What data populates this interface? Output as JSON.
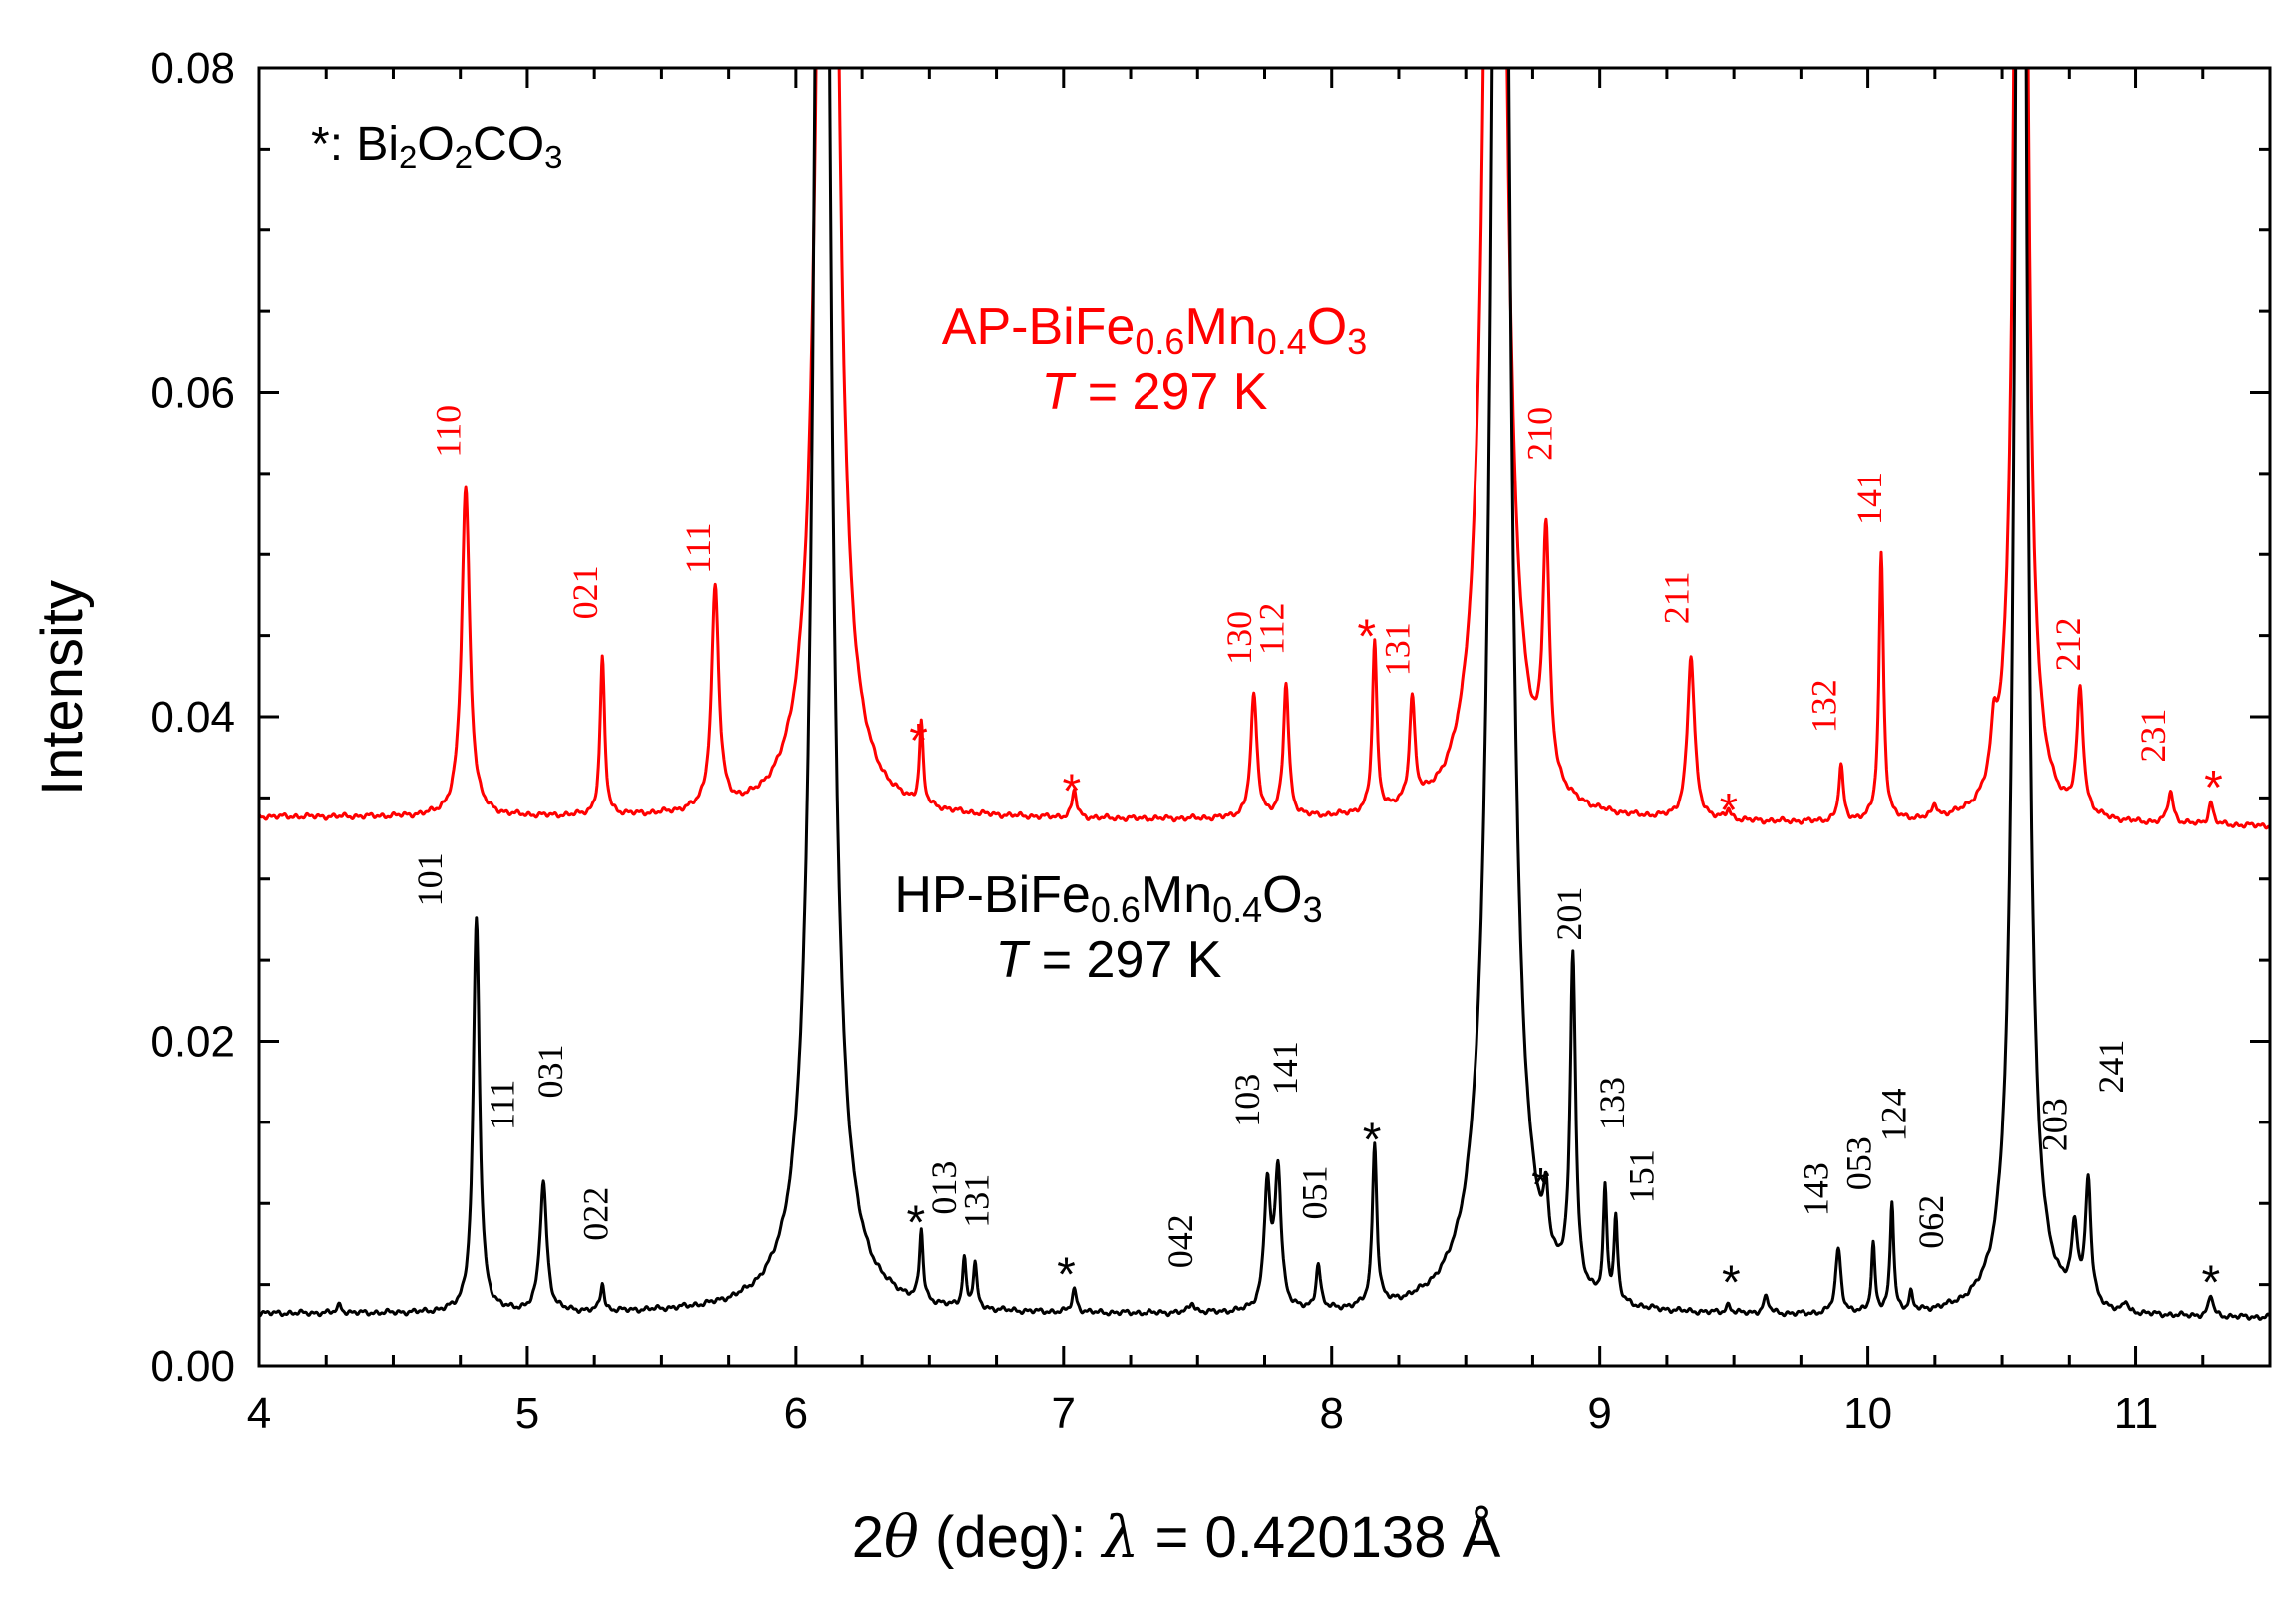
{
  "chart_data": {
    "type": "line",
    "xlabel": "2θ (deg): λ = 0.420138 Å",
    "xlabel_parts": {
      "two": "2",
      "theta": "θ",
      "deg": " (deg): ",
      "lambda": "λ",
      "rest": " = 0.420138 Å"
    },
    "ylabel": "Intensity",
    "xlim": [
      4,
      11.5
    ],
    "ylim": [
      0,
      0.08
    ],
    "x_ticks": [
      4,
      5,
      6,
      7,
      8,
      9,
      10,
      11
    ],
    "x_tick_labels": [
      "4",
      "5",
      "6",
      "7",
      "8",
      "9",
      "10",
      "11"
    ],
    "y_ticks": [
      0.0,
      0.02,
      0.04,
      0.06,
      0.08
    ],
    "y_tick_labels": [
      "0.00",
      "0.02",
      "0.04",
      "0.06",
      "0.08"
    ],
    "legend_note": {
      "star": "*",
      "sep": ": ",
      "formula": [
        [
          "Bi",
          false
        ],
        [
          "2",
          true
        ],
        [
          "O",
          false
        ],
        [
          "2",
          true
        ],
        [
          "CO",
          false
        ],
        [
          "3",
          true
        ]
      ]
    },
    "series": [
      {
        "name": "AP-BiFe0.6Mn0.4O3",
        "color": "#ff0000",
        "label_parts": [
          [
            "AP-BiFe",
            false
          ],
          [
            "0.6",
            true
          ],
          [
            "Mn",
            false
          ],
          [
            "0.4",
            true
          ],
          [
            "O",
            false
          ],
          [
            "3",
            true
          ]
        ],
        "temperature": {
          "t": "T",
          "rest": " = 297 K"
        },
        "baseline": 0.0338,
        "baseline_end": 0.0332,
        "peaks": [
          {
            "x": 4.77,
            "h": 0.0203,
            "w": 0.018,
            "label": "110"
          },
          {
            "x": 5.28,
            "h": 0.0097,
            "w": 0.01,
            "label": "021"
          },
          {
            "x": 5.7,
            "h": 0.0137,
            "w": 0.016,
            "label": "111"
          },
          {
            "x": 6.12,
            "h": 0.15,
            "w": 0.03,
            "label": ""
          },
          {
            "x": 6.47,
            "h": 0.005,
            "w": 0.008,
            "label": "*"
          },
          {
            "x": 7.04,
            "h": 0.0017,
            "w": 0.01,
            "label": "*"
          },
          {
            "x": 7.71,
            "h": 0.0075,
            "w": 0.014,
            "label": "130"
          },
          {
            "x": 7.83,
            "h": 0.0082,
            "w": 0.012,
            "label": "112"
          },
          {
            "x": 8.16,
            "h": 0.0105,
            "w": 0.01,
            "label": "*"
          },
          {
            "x": 8.3,
            "h": 0.0065,
            "w": 0.012,
            "label": "131"
          },
          {
            "x": 8.61,
            "h": 0.15,
            "w": 0.03,
            "label": ""
          },
          {
            "x": 8.8,
            "h": 0.015,
            "w": 0.015,
            "label": "210"
          },
          {
            "x": 9.34,
            "h": 0.01,
            "w": 0.016,
            "label": "211"
          },
          {
            "x": 9.48,
            "h": 0.0006,
            "w": 0.01,
            "label": "*"
          },
          {
            "x": 9.9,
            "h": 0.0034,
            "w": 0.01,
            "label": "132"
          },
          {
            "x": 10.05,
            "h": 0.0165,
            "w": 0.01,
            "label": "141"
          },
          {
            "x": 10.25,
            "h": 0.0008,
            "w": 0.01,
            "label": ""
          },
          {
            "x": 10.47,
            "h": 0.003,
            "w": 0.014,
            "label": ""
          },
          {
            "x": 10.57,
            "h": 0.15,
            "w": 0.018,
            "label": ""
          },
          {
            "x": 10.79,
            "h": 0.0075,
            "w": 0.014,
            "label": "212"
          },
          {
            "x": 11.13,
            "h": 0.002,
            "w": 0.012,
            "label": "231"
          },
          {
            "x": 11.28,
            "h": 0.0014,
            "w": 0.01,
            "label": "*"
          }
        ]
      },
      {
        "name": "HP-BiFe0.6Mn0.4O3",
        "color": "#000000",
        "label_parts": [
          [
            "HP-BiFe",
            false
          ],
          [
            "0.6",
            true
          ],
          [
            "Mn",
            false
          ],
          [
            "0.4",
            true
          ],
          [
            "O",
            false
          ],
          [
            "3",
            true
          ]
        ],
        "temperature": {
          "t": "T",
          "rest": " = 297 K"
        },
        "baseline": 0.0032,
        "baseline_end": 0.0029,
        "peaks": [
          {
            "x": 4.3,
            "h": 0.0005,
            "w": 0.01,
            "label": ""
          },
          {
            "x": 4.81,
            "h": 0.0243,
            "w": 0.014,
            "label": "101"
          },
          {
            "x": 5.06,
            "h": 0.008,
            "w": 0.015,
            "label": "111 031"
          },
          {
            "x": 5.28,
            "h": 0.0017,
            "w": 0.008,
            "label": "022"
          },
          {
            "x": 6.1,
            "h": 0.15,
            "w": 0.03,
            "label": ""
          },
          {
            "x": 6.47,
            "h": 0.0043,
            "w": 0.008,
            "label": "*"
          },
          {
            "x": 6.63,
            "h": 0.003,
            "w": 0.008,
            "label": "013"
          },
          {
            "x": 6.67,
            "h": 0.0027,
            "w": 0.008,
            "label": "131"
          },
          {
            "x": 7.04,
            "h": 0.0014,
            "w": 0.01,
            "label": "*"
          },
          {
            "x": 7.48,
            "h": 0.0006,
            "w": 0.012,
            "label": "042"
          },
          {
            "x": 7.76,
            "h": 0.0076,
            "w": 0.014,
            "label": "103"
          },
          {
            "x": 7.8,
            "h": 0.0085,
            "w": 0.014,
            "label": "141"
          },
          {
            "x": 7.95,
            "h": 0.0028,
            "w": 0.01,
            "label": "051"
          },
          {
            "x": 8.16,
            "h": 0.01,
            "w": 0.01,
            "label": "*"
          },
          {
            "x": 8.63,
            "h": 0.15,
            "w": 0.032,
            "label": ""
          },
          {
            "x": 8.8,
            "h": 0.0035,
            "w": 0.01,
            "label": "*"
          },
          {
            "x": 8.9,
            "h": 0.0205,
            "w": 0.012,
            "label": "201"
          },
          {
            "x": 9.02,
            "h": 0.0068,
            "w": 0.008,
            "label": "133"
          },
          {
            "x": 9.06,
            "h": 0.0051,
            "w": 0.008,
            "label": "151"
          },
          {
            "x": 9.48,
            "h": 0.0005,
            "w": 0.01,
            "label": "*"
          },
          {
            "x": 9.62,
            "h": 0.001,
            "w": 0.012,
            "label": ""
          },
          {
            "x": 9.89,
            "h": 0.004,
            "w": 0.012,
            "label": "143"
          },
          {
            "x": 10.02,
            "h": 0.0042,
            "w": 0.008,
            "label": "053"
          },
          {
            "x": 10.09,
            "h": 0.0068,
            "w": 0.008,
            "label": "124"
          },
          {
            "x": 10.16,
            "h": 0.0011,
            "w": 0.008,
            "label": "062"
          },
          {
            "x": 10.57,
            "h": 0.15,
            "w": 0.02,
            "label": ""
          },
          {
            "x": 10.77,
            "h": 0.0043,
            "w": 0.014,
            "label": "203"
          },
          {
            "x": 10.82,
            "h": 0.0076,
            "w": 0.012,
            "label": "241"
          },
          {
            "x": 10.96,
            "h": 0.0006,
            "w": 0.008,
            "label": ""
          },
          {
            "x": 11.28,
            "h": 0.0013,
            "w": 0.01,
            "label": "*"
          }
        ]
      }
    ],
    "annotations": [
      {
        "text": "110",
        "x": 4.75,
        "y": 0.056,
        "color": "#ff0000",
        "rotate": true
      },
      {
        "text": "021",
        "x": 5.26,
        "y": 0.046,
        "color": "#ff0000",
        "rotate": true
      },
      {
        "text": "111",
        "x": 5.68,
        "y": 0.0488,
        "color": "#ff0000",
        "rotate": true
      },
      {
        "text": "*",
        "x": 6.46,
        "y": 0.0389,
        "color": "#ff0000",
        "rotate": false
      },
      {
        "text": "*",
        "x": 7.03,
        "y": 0.0358,
        "color": "#ff0000",
        "rotate": false
      },
      {
        "text": "130",
        "x": 7.7,
        "y": 0.0432,
        "color": "#ff0000",
        "rotate": true
      },
      {
        "text": "112",
        "x": 7.82,
        "y": 0.0438,
        "color": "#ff0000",
        "rotate": true
      },
      {
        "text": "*",
        "x": 8.13,
        "y": 0.0453,
        "color": "#ff0000",
        "rotate": false
      },
      {
        "text": "131",
        "x": 8.29,
        "y": 0.0425,
        "color": "#ff0000",
        "rotate": true
      },
      {
        "text": "210",
        "x": 8.82,
        "y": 0.0558,
        "color": "#ff0000",
        "rotate": true
      },
      {
        "text": "211",
        "x": 9.33,
        "y": 0.0457,
        "color": "#ff0000",
        "rotate": true
      },
      {
        "text": "*",
        "x": 9.48,
        "y": 0.0346,
        "color": "#ff0000",
        "rotate": false
      },
      {
        "text": "132",
        "x": 9.88,
        "y": 0.039,
        "color": "#ff0000",
        "rotate": true
      },
      {
        "text": "141",
        "x": 10.05,
        "y": 0.0518,
        "color": "#ff0000",
        "rotate": true
      },
      {
        "text": "212",
        "x": 10.79,
        "y": 0.0428,
        "color": "#ff0000",
        "rotate": true
      },
      {
        "text": "231",
        "x": 11.11,
        "y": 0.0372,
        "color": "#ff0000",
        "rotate": true
      },
      {
        "text": "*",
        "x": 11.29,
        "y": 0.036,
        "color": "#ff0000",
        "rotate": false
      },
      {
        "text": "101",
        "x": 4.68,
        "y": 0.0283,
        "color": "#000000",
        "rotate": true
      },
      {
        "text": "111",
        "x": 4.95,
        "y": 0.0145,
        "color": "#000000",
        "rotate": true
      },
      {
        "text": "031",
        "x": 5.13,
        "y": 0.0165,
        "color": "#000000",
        "rotate": true
      },
      {
        "text": "022",
        "x": 5.3,
        "y": 0.0077,
        "color": "#000000",
        "rotate": true
      },
      {
        "text": "*",
        "x": 6.45,
        "y": 0.0092,
        "color": "#000000",
        "rotate": false
      },
      {
        "text": "013",
        "x": 6.6,
        "y": 0.0093,
        "color": "#000000",
        "rotate": true
      },
      {
        "text": "131",
        "x": 6.72,
        "y": 0.0085,
        "color": "#000000",
        "rotate": true
      },
      {
        "text": "*",
        "x": 7.01,
        "y": 0.006,
        "color": "#000000",
        "rotate": false
      },
      {
        "text": "042",
        "x": 7.48,
        "y": 0.006,
        "color": "#000000",
        "rotate": true
      },
      {
        "text": "103",
        "x": 7.73,
        "y": 0.0147,
        "color": "#000000",
        "rotate": true
      },
      {
        "text": "141",
        "x": 7.87,
        "y": 0.0167,
        "color": "#000000",
        "rotate": true
      },
      {
        "text": "051",
        "x": 7.98,
        "y": 0.009,
        "color": "#000000",
        "rotate": true
      },
      {
        "text": "*",
        "x": 8.15,
        "y": 0.0143,
        "color": "#000000",
        "rotate": false
      },
      {
        "text": "*",
        "x": 8.78,
        "y": 0.0115,
        "color": "#000000",
        "rotate": false
      },
      {
        "text": "201",
        "x": 8.93,
        "y": 0.0262,
        "color": "#000000",
        "rotate": true
      },
      {
        "text": "133",
        "x": 9.09,
        "y": 0.0145,
        "color": "#000000",
        "rotate": true
      },
      {
        "text": "151",
        "x": 9.2,
        "y": 0.01,
        "color": "#000000",
        "rotate": true
      },
      {
        "text": "*",
        "x": 9.49,
        "y": 0.0055,
        "color": "#000000",
        "rotate": false
      },
      {
        "text": "143",
        "x": 9.85,
        "y": 0.0092,
        "color": "#000000",
        "rotate": true
      },
      {
        "text": "053",
        "x": 10.01,
        "y": 0.0108,
        "color": "#000000",
        "rotate": true
      },
      {
        "text": "124",
        "x": 10.14,
        "y": 0.0138,
        "color": "#000000",
        "rotate": true
      },
      {
        "text": "062",
        "x": 10.28,
        "y": 0.0072,
        "color": "#000000",
        "rotate": true
      },
      {
        "text": "203",
        "x": 10.74,
        "y": 0.0132,
        "color": "#000000",
        "rotate": true
      },
      {
        "text": "241",
        "x": 10.95,
        "y": 0.0168,
        "color": "#000000",
        "rotate": true
      },
      {
        "text": "*",
        "x": 11.28,
        "y": 0.0055,
        "color": "#000000",
        "rotate": false
      }
    ]
  }
}
